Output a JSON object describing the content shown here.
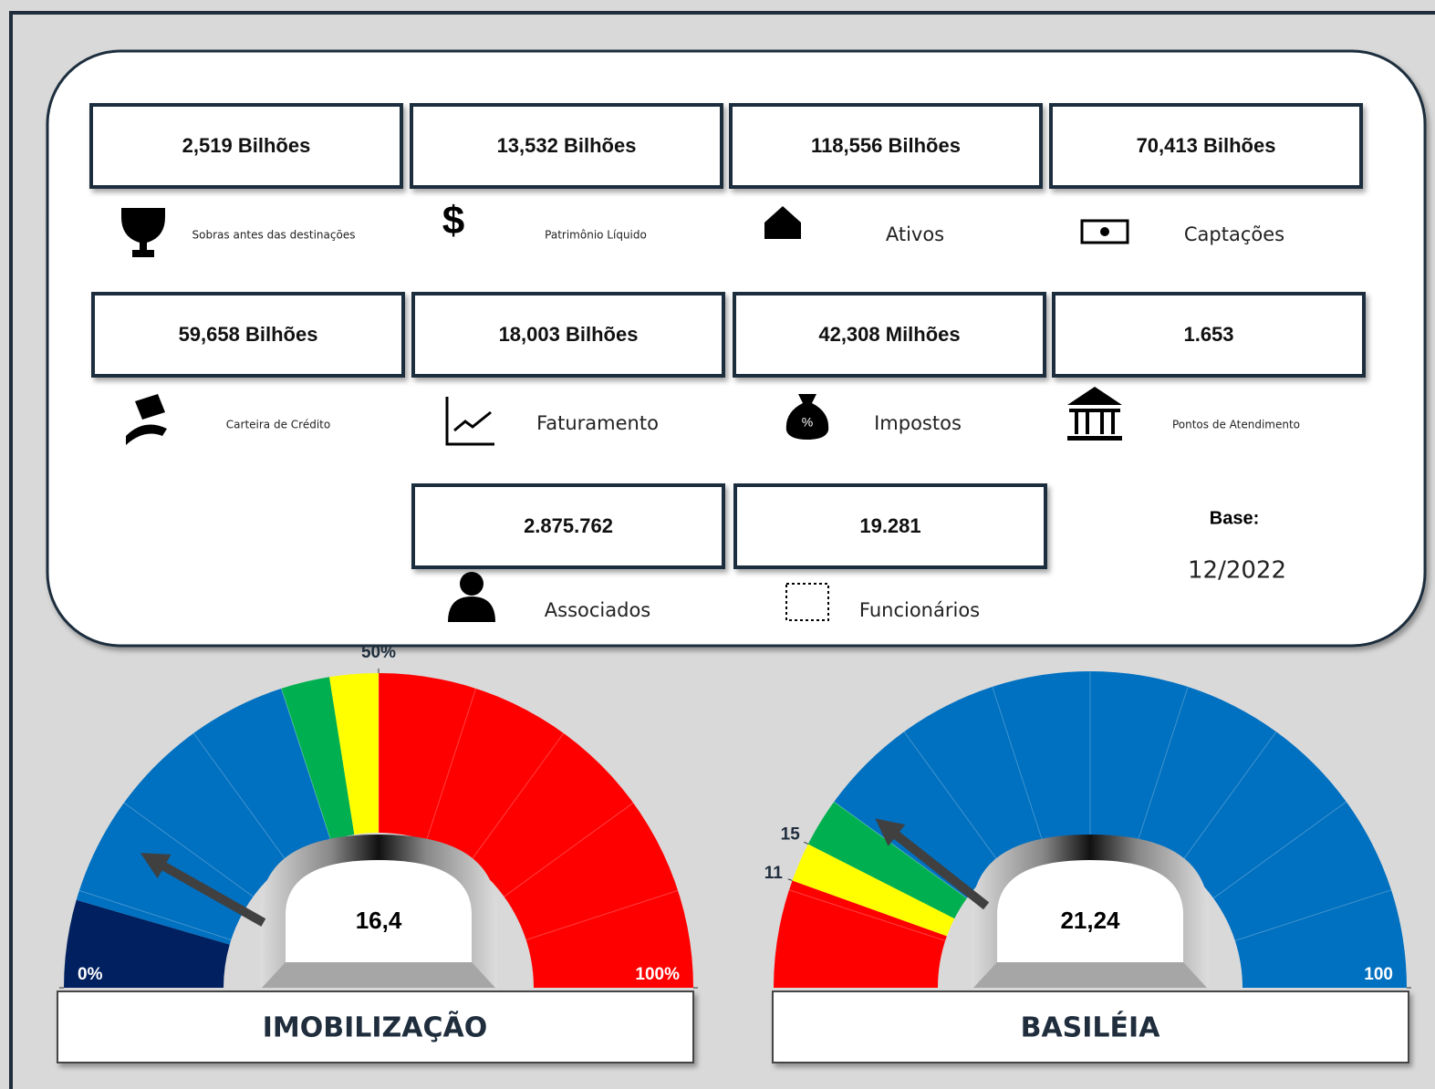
{
  "cards": [
    {
      "value": "2,519 Bilhões",
      "label": "Sobras antes das destinações"
    },
    {
      "value": "13,532 Bilhões",
      "label": "Patrimônio Líquido"
    },
    {
      "value": "118,556 Bilhões",
      "label": "Ativos"
    },
    {
      "value": "70,413 Bilhões",
      "label": "Captações"
    },
    {
      "value": "59,658 Bilhões",
      "label": "Carteira de Crédito"
    },
    {
      "value": "18,003 Bilhões",
      "label": "Faturamento"
    },
    {
      "value": "42,308 Milhões",
      "label": "Impostos"
    },
    {
      "value": "1.653",
      "label": "Pontos de Atendimento"
    },
    {
      "value": "2.875.762",
      "label": "Associados"
    },
    {
      "value": "19.281",
      "label": "Funcionários"
    }
  ],
  "base": {
    "label": "Base:",
    "date": "12/2022"
  },
  "chart_data": [
    {
      "type": "gauge",
      "title": "IMOBILIZAÇÃO",
      "value": 16.4,
      "value_label": "16,4",
      "ylim": [
        0,
        100
      ],
      "bands": [
        0,
        9,
        40,
        45,
        50,
        100
      ],
      "band_colors": [
        "#002060",
        "#0070c0",
        "#00b050",
        "#ffff00",
        "#ff0000"
      ],
      "yticks": [
        {
          "value": 0,
          "label": "0%"
        },
        {
          "value": 50,
          "label": "50%"
        },
        {
          "value": 100,
          "label": "100%"
        }
      ]
    },
    {
      "type": "gauge",
      "title": "BASILÉIA",
      "value": 21.24,
      "value_label": "21,24",
      "ylim": [
        0,
        100
      ],
      "bands": [
        0,
        11,
        15,
        20,
        100
      ],
      "band_colors": [
        "#ff0000",
        "#ffff00",
        "#00b050",
        "#0070c0"
      ],
      "yticks": [
        11,
        15,
        100
      ]
    }
  ]
}
